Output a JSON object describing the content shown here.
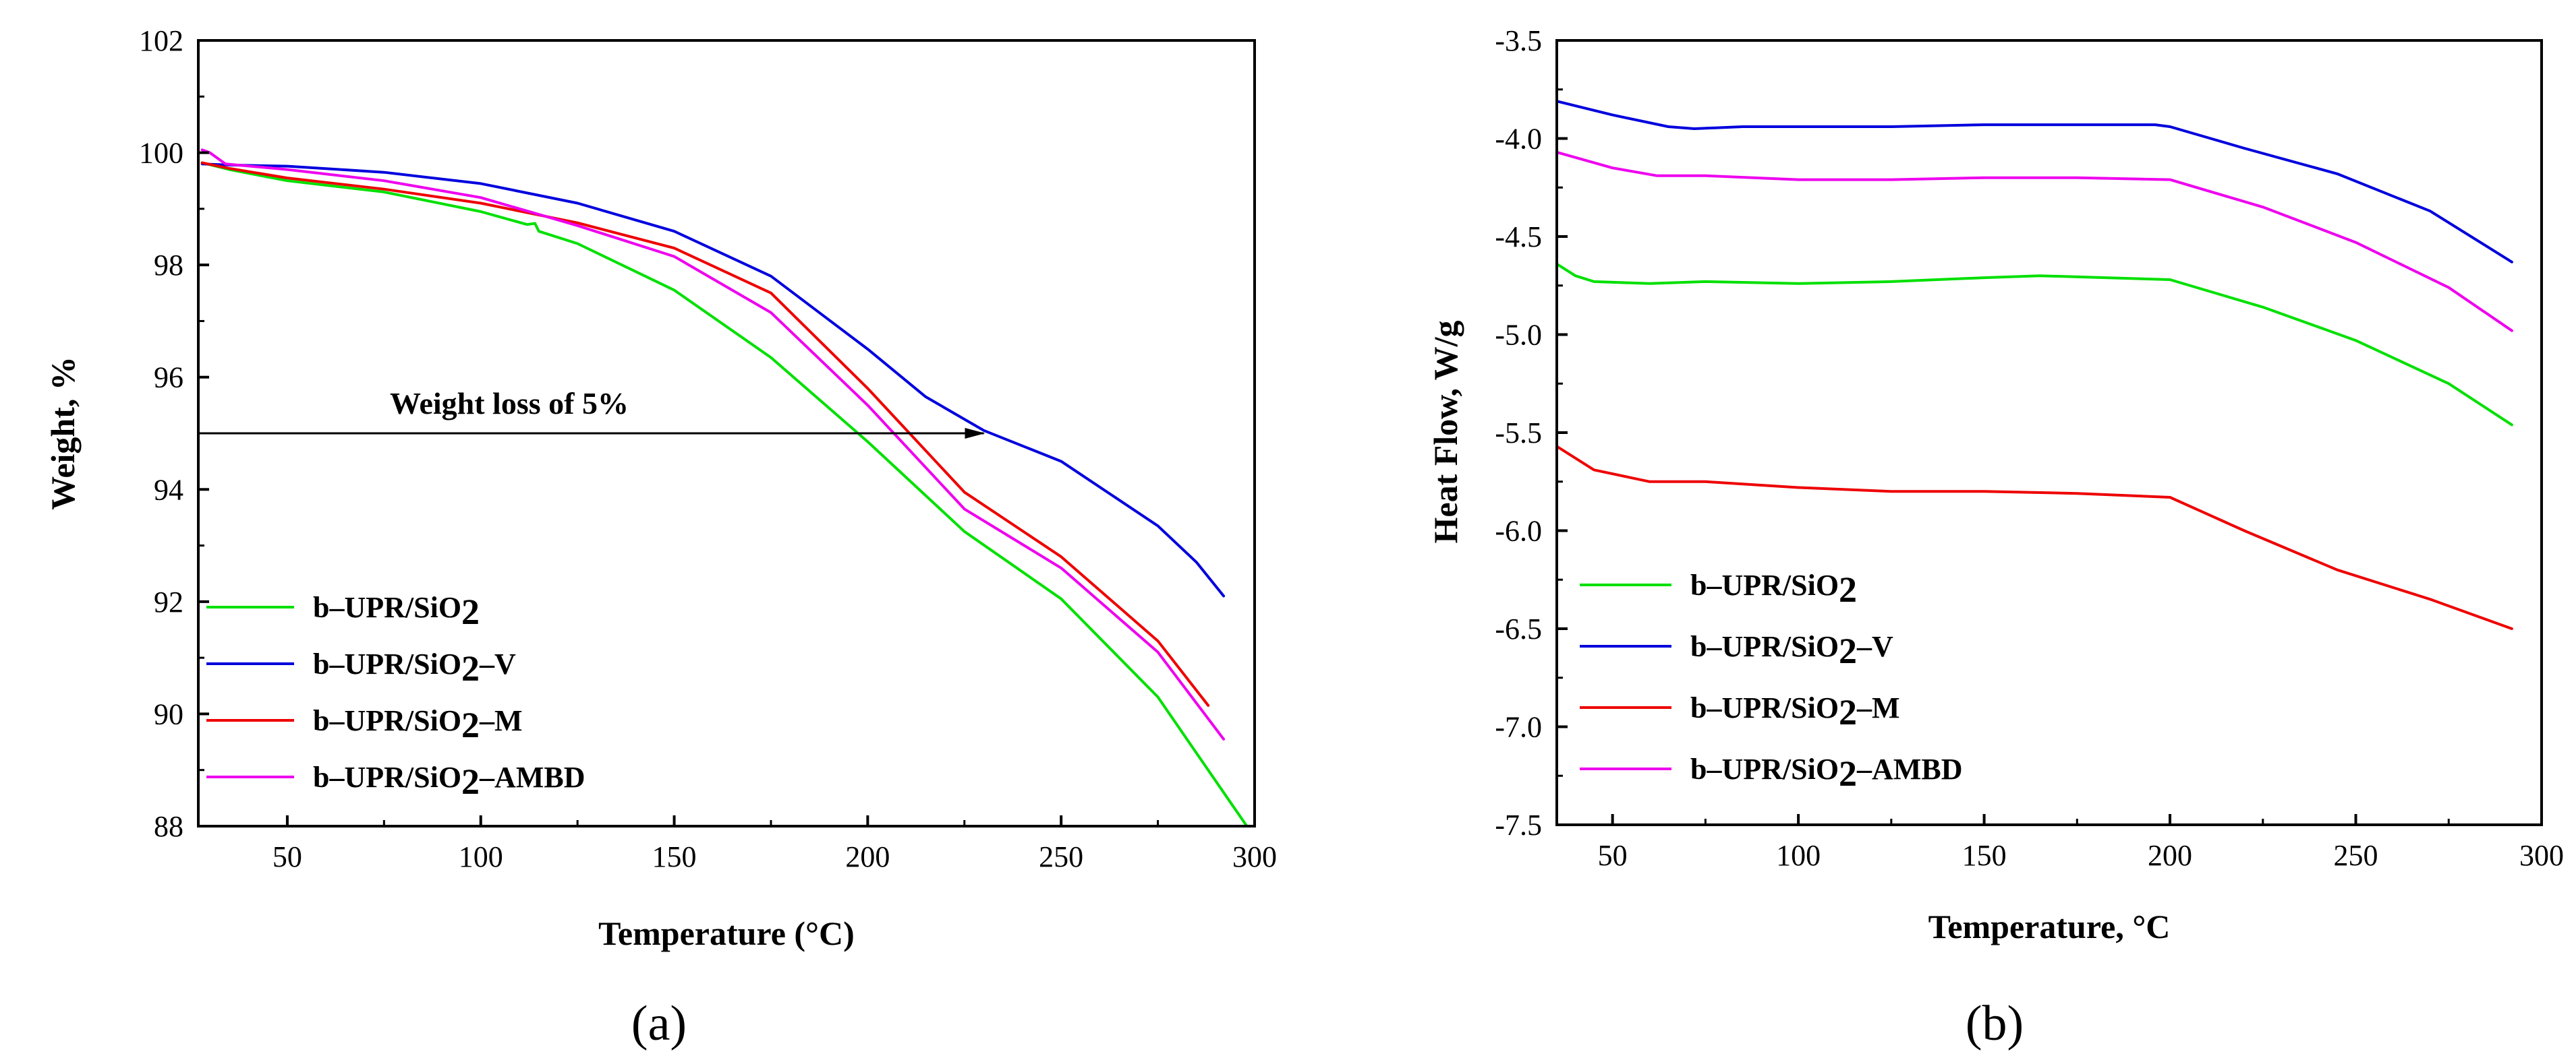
{
  "chart_data": [
    {
      "type": "line",
      "panel_label": "(a)",
      "xlabel": "Temperature (°C)",
      "ylabel": "Weight, %",
      "xlim": [
        27,
        300
      ],
      "ylim": [
        88,
        102
      ],
      "x_ticks": [
        50,
        100,
        150,
        200,
        250,
        300
      ],
      "y_ticks": [
        88,
        90,
        92,
        94,
        96,
        98,
        100,
        102
      ],
      "legend_position": "bottom-left",
      "annotation": {
        "text": "Weight loss of 5%",
        "y": 95,
        "x_start": 27,
        "x_end": 230
      },
      "series": [
        {
          "name": "b–UPR/SiO2",
          "label_base": "b–UPR/SiO",
          "label_sub": "2",
          "label_suffix": "",
          "color": "#00e000",
          "points": [
            [
              28,
              99.82
            ],
            [
              35,
              99.7
            ],
            [
              50,
              99.5
            ],
            [
              75,
              99.3
            ],
            [
              100,
              98.95
            ],
            [
              112,
              98.72
            ],
            [
              114,
              98.74
            ],
            [
              115,
              98.6
            ],
            [
              125,
              98.38
            ],
            [
              150,
              97.55
            ],
            [
              175,
              96.35
            ],
            [
              200,
              94.85
            ],
            [
              225,
              93.25
            ],
            [
              250,
              92.05
            ],
            [
              275,
              90.3
            ],
            [
              290,
              88.8
            ],
            [
              298,
              88.0
            ]
          ]
        },
        {
          "name": "b–UPR/SiO2–V",
          "label_base": "b–UPR/SiO",
          "label_sub": "2",
          "label_suffix": "–V",
          "color": "#0000dd",
          "points": [
            [
              28,
              99.8
            ],
            [
              35,
              99.78
            ],
            [
              50,
              99.76
            ],
            [
              75,
              99.65
            ],
            [
              100,
              99.45
            ],
            [
              125,
              99.1
            ],
            [
              150,
              98.6
            ],
            [
              175,
              97.8
            ],
            [
              200,
              96.5
            ],
            [
              215,
              95.65
            ],
            [
              230,
              95.05
            ],
            [
              250,
              94.5
            ],
            [
              275,
              93.35
            ],
            [
              285,
              92.7
            ],
            [
              292,
              92.1
            ]
          ]
        },
        {
          "name": "b–UPR/SiO2–M",
          "label_base": "b–UPR/SiO",
          "label_sub": "2",
          "label_suffix": "–M",
          "color": "#ee0000",
          "points": [
            [
              28,
              99.82
            ],
            [
              35,
              99.72
            ],
            [
              50,
              99.55
            ],
            [
              75,
              99.35
            ],
            [
              100,
              99.1
            ],
            [
              125,
              98.75
            ],
            [
              150,
              98.3
            ],
            [
              175,
              97.5
            ],
            [
              200,
              95.8
            ],
            [
              225,
              93.95
            ],
            [
              250,
              92.8
            ],
            [
              275,
              91.3
            ],
            [
              288,
              90.15
            ]
          ]
        },
        {
          "name": "b–UPR/SiO2–AMBD",
          "label_base": "b–UPR/SiO",
          "label_sub": "2",
          "label_suffix": "–AMBD",
          "color": "#ee00ee",
          "points": [
            [
              28,
              100.05
            ],
            [
              30,
              100.0
            ],
            [
              34,
              99.8
            ],
            [
              50,
              99.7
            ],
            [
              75,
              99.5
            ],
            [
              100,
              99.2
            ],
            [
              125,
              98.7
            ],
            [
              150,
              98.15
            ],
            [
              175,
              97.15
            ],
            [
              200,
              95.5
            ],
            [
              225,
              93.65
            ],
            [
              250,
              92.6
            ],
            [
              275,
              91.1
            ],
            [
              292,
              89.55
            ]
          ]
        }
      ]
    },
    {
      "type": "line",
      "panel_label": "(b)",
      "xlabel": "Temperature, °C",
      "ylabel": "Heat Flow, W/g",
      "xlim": [
        35,
        300
      ],
      "ylim": [
        -7.5,
        -3.5
      ],
      "x_ticks": [
        50,
        100,
        150,
        200,
        250,
        300
      ],
      "y_ticks": [
        -3.5,
        -4.0,
        -4.5,
        -5.0,
        -5.5,
        -6.0,
        -6.5,
        -7.0,
        -7.5
      ],
      "y_tick_labels": [
        "-3.5",
        "-4.0",
        "-4.5",
        "-5.0",
        "-5.5",
        "-6.0",
        "-6.5",
        "-7.0",
        "-7.5"
      ],
      "legend_position": "bottom-left",
      "series": [
        {
          "name": "b–UPR/SiO2",
          "label_base": "b–UPR/SiO",
          "label_sub": "2",
          "label_suffix": "",
          "color": "#00e000",
          "points": [
            [
              35,
              -4.64
            ],
            [
              40,
              -4.7
            ],
            [
              45,
              -4.73
            ],
            [
              60,
              -4.74
            ],
            [
              75,
              -4.73
            ],
            [
              100,
              -4.74
            ],
            [
              125,
              -4.73
            ],
            [
              150,
              -4.71
            ],
            [
              165,
              -4.7
            ],
            [
              200,
              -4.72
            ],
            [
              225,
              -4.86
            ],
            [
              250,
              -5.03
            ],
            [
              275,
              -5.25
            ],
            [
              292,
              -5.46
            ]
          ]
        },
        {
          "name": "b–UPR/SiO2–V",
          "label_base": "b–UPR/SiO",
          "label_sub": "2",
          "label_suffix": "–V",
          "color": "#0000dd",
          "points": [
            [
              35,
              -3.81
            ],
            [
              50,
              -3.88
            ],
            [
              65,
              -3.94
            ],
            [
              72,
              -3.95
            ],
            [
              85,
              -3.94
            ],
            [
              100,
              -3.94
            ],
            [
              125,
              -3.94
            ],
            [
              150,
              -3.93
            ],
            [
              175,
              -3.93
            ],
            [
              196,
              -3.93
            ],
            [
              200,
              -3.94
            ],
            [
              220,
              -4.05
            ],
            [
              245,
              -4.18
            ],
            [
              270,
              -4.37
            ],
            [
              292,
              -4.63
            ]
          ]
        },
        {
          "name": "b–UPR/SiO2–M",
          "label_base": "b–UPR/SiO",
          "label_sub": "2",
          "label_suffix": "–M",
          "color": "#ee0000",
          "points": [
            [
              35,
              -5.57
            ],
            [
              45,
              -5.69
            ],
            [
              60,
              -5.75
            ],
            [
              75,
              -5.75
            ],
            [
              100,
              -5.78
            ],
            [
              125,
              -5.8
            ],
            [
              150,
              -5.8
            ],
            [
              175,
              -5.81
            ],
            [
              200,
              -5.83
            ],
            [
              220,
              -6.0
            ],
            [
              245,
              -6.2
            ],
            [
              270,
              -6.35
            ],
            [
              292,
              -6.5
            ]
          ]
        },
        {
          "name": "b–UPR/SiO2–AMBD",
          "label_base": "b–UPR/SiO",
          "label_sub": "2",
          "label_suffix": "–AMBD",
          "color": "#ee00ee",
          "points": [
            [
              35,
              -4.07
            ],
            [
              50,
              -4.15
            ],
            [
              62,
              -4.19
            ],
            [
              75,
              -4.19
            ],
            [
              100,
              -4.21
            ],
            [
              125,
              -4.21
            ],
            [
              150,
              -4.2
            ],
            [
              175,
              -4.2
            ],
            [
              200,
              -4.21
            ],
            [
              225,
              -4.35
            ],
            [
              250,
              -4.53
            ],
            [
              275,
              -4.76
            ],
            [
              292,
              -4.98
            ]
          ]
        }
      ]
    }
  ]
}
